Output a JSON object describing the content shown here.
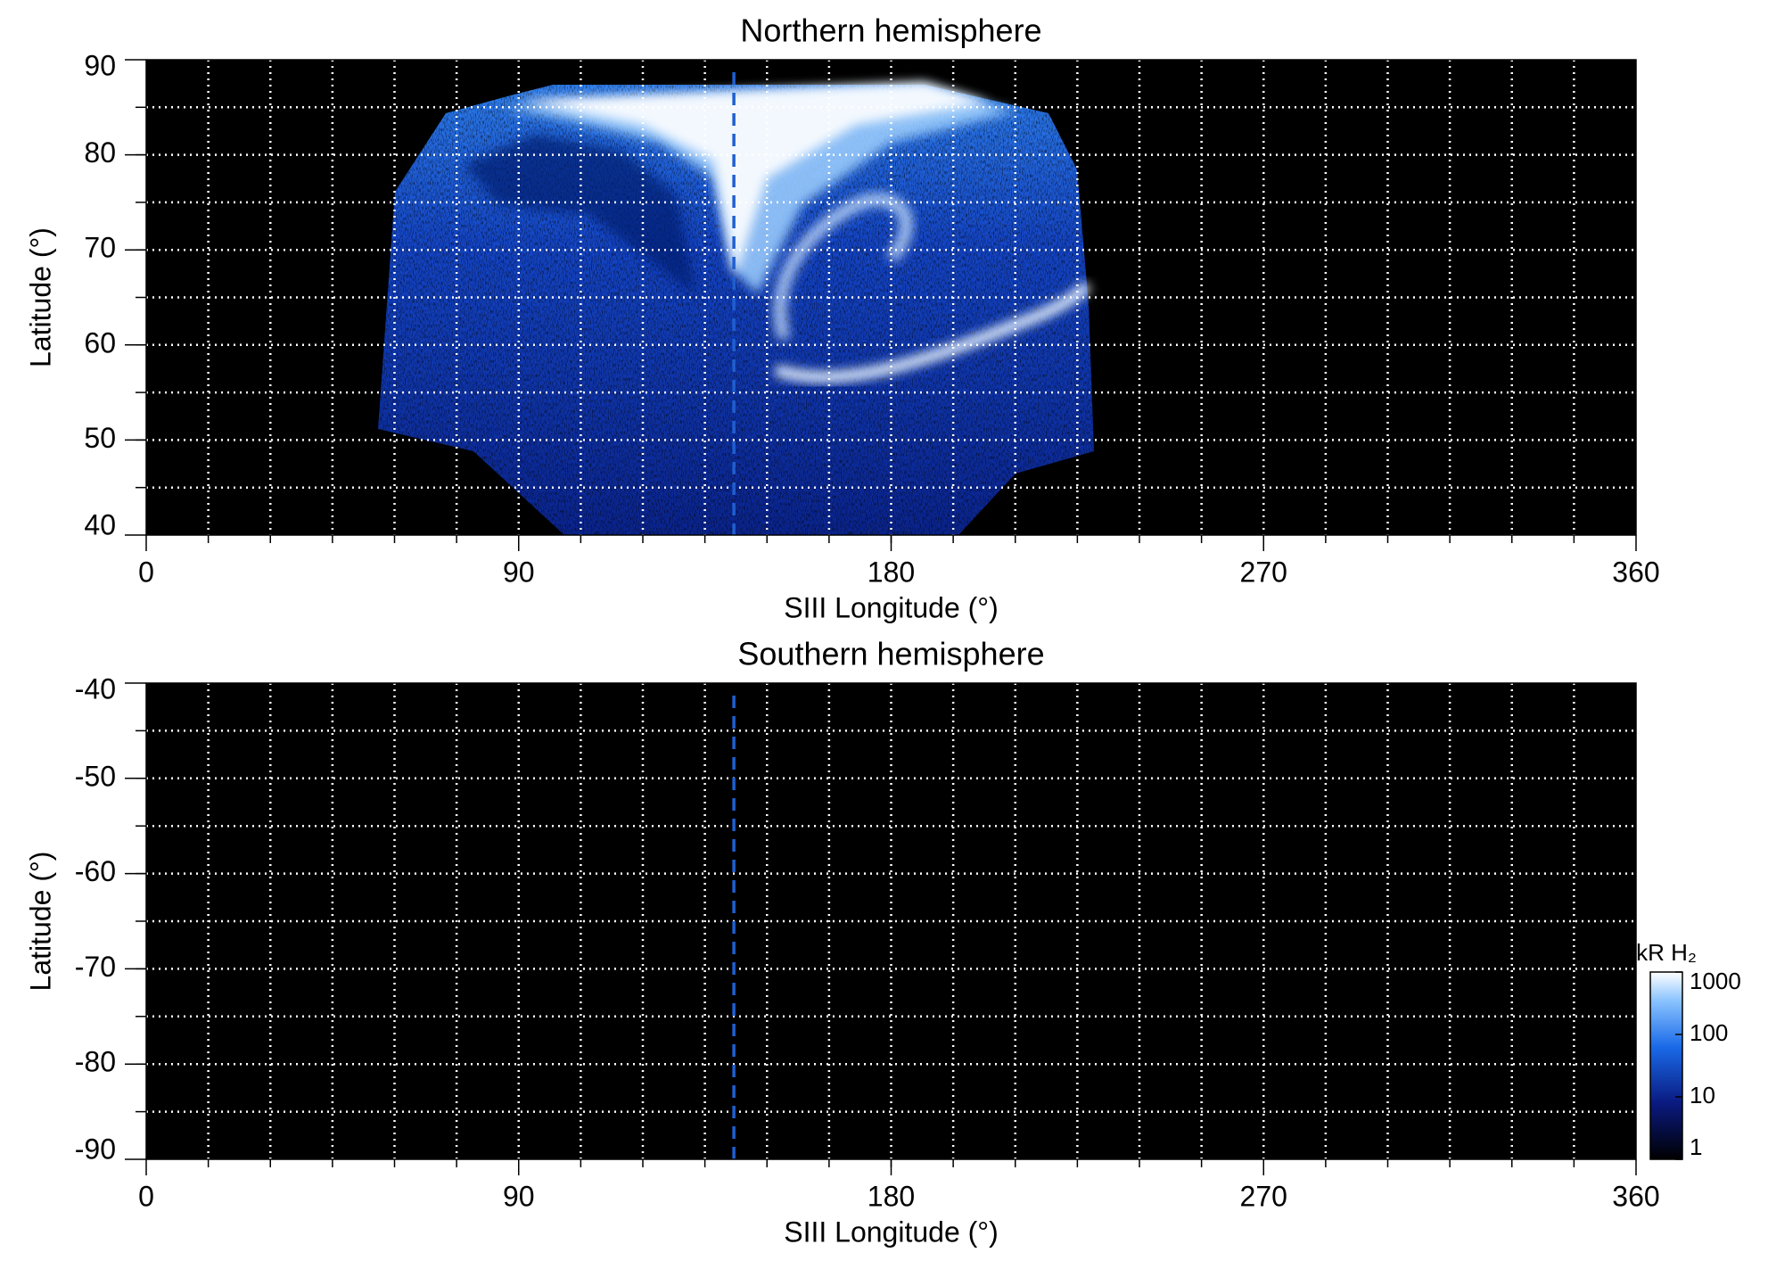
{
  "chart_data": [
    {
      "type": "image",
      "title": "Northern hemisphere",
      "xlabel": "SIII Longitude (°)",
      "ylabel": "Latitude (°)",
      "xlim": [
        0,
        360
      ],
      "ylim": [
        40,
        90
      ],
      "xticks": [
        0,
        90,
        180,
        270,
        360
      ],
      "yticks": [
        40,
        50,
        60,
        70,
        80,
        90
      ],
      "xgrid": [
        15,
        30,
        45,
        60,
        75,
        90,
        105,
        120,
        135,
        150,
        165,
        180,
        195,
        210,
        225,
        240,
        255,
        270,
        285,
        300,
        315,
        330,
        345
      ],
      "ygrid": [
        45,
        50,
        55,
        60,
        65,
        70,
        75,
        80,
        85
      ],
      "reference_line": {
        "x": 142,
        "color": "#1f5fd0"
      }
    },
    {
      "type": "image",
      "title": "Southern hemisphere",
      "xlabel": "SIII Longitude (°)",
      "ylabel": "Latitude (°)",
      "xlim": [
        0,
        360
      ],
      "ylim": [
        -90,
        -40
      ],
      "xticks": [
        0,
        90,
        180,
        270,
        360
      ],
      "yticks": [
        -90,
        -80,
        -70,
        -60,
        -50,
        -40
      ],
      "xgrid": [
        15,
        30,
        45,
        60,
        75,
        90,
        105,
        120,
        135,
        150,
        165,
        180,
        195,
        210,
        225,
        240,
        255,
        270,
        285,
        300,
        315,
        330,
        345
      ],
      "ygrid": [
        -85,
        -80,
        -75,
        -70,
        -65,
        -60,
        -55,
        -50,
        -45
      ],
      "reference_line": {
        "x": 142,
        "color": "#1f5fd0"
      },
      "colorbar": {
        "label": "kR H₂",
        "scale": "log",
        "lim": [
          1,
          1000
        ],
        "ticks": [
          1,
          10,
          100,
          1000
        ]
      }
    }
  ]
}
